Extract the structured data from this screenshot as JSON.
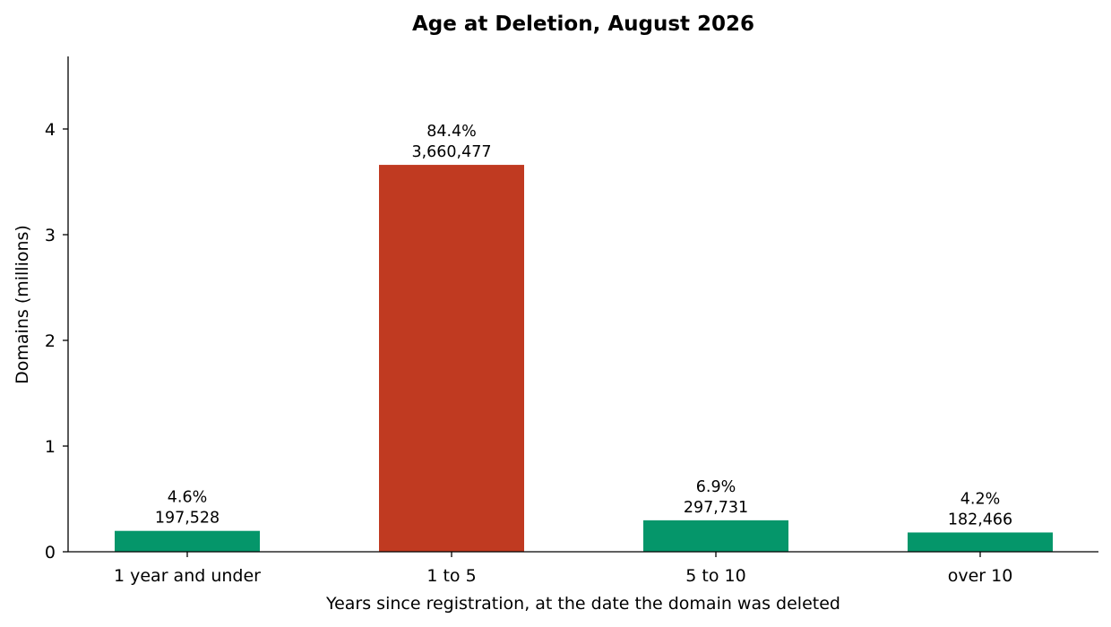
{
  "chart_data": {
    "type": "bar",
    "title": "Age at Deletion, August 2026",
    "xlabel": "Years since registration, at the date the domain was deleted",
    "ylabel": "Domains (millions)",
    "ylim": [
      0,
      4.7
    ],
    "yticks": [
      0,
      1,
      2,
      3,
      4
    ],
    "grid": false,
    "categories": [
      "1 year and under",
      "1 to 5",
      "5 to 10",
      "over 10"
    ],
    "values": [
      0.197528,
      3.660477,
      0.297731,
      0.182466
    ],
    "percent_labels": [
      "4.6%",
      "84.4%",
      "6.9%",
      "4.2%"
    ],
    "count_labels": [
      "197,528",
      "3,660,477",
      "297,731",
      "182,466"
    ],
    "colors": [
      "#05966a",
      "#c03a21",
      "#05966a",
      "#05966a"
    ]
  }
}
